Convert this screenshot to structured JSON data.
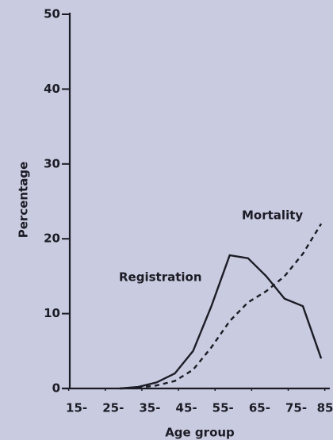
{
  "chart_data": {
    "type": "line",
    "xlabel": "Age group",
    "ylabel": "Percentage",
    "x": [
      29,
      34,
      39,
      44,
      49,
      54,
      59,
      64,
      69,
      74,
      79,
      84
    ],
    "series": [
      {
        "name": "Registration",
        "color": "#1c1c26",
        "dash": "solid",
        "values": [
          0,
          0.2,
          0.8,
          2,
          5,
          11,
          17.8,
          17.4,
          15,
          12,
          11,
          4
        ]
      },
      {
        "name": "Mortality",
        "color": "#1c1c26",
        "dash": "dashed",
        "values": [
          0,
          0.1,
          0.4,
          1,
          2.5,
          5.5,
          9,
          11.5,
          13,
          15,
          18,
          22
        ]
      }
    ],
    "xlim": [
      14,
      85.5
    ],
    "xticks": [
      {
        "value": 15,
        "label": "15-"
      },
      {
        "value": 25,
        "label": "25-"
      },
      {
        "value": 35,
        "label": "35-"
      },
      {
        "value": 45,
        "label": "45-"
      },
      {
        "value": 55,
        "label": "55-"
      },
      {
        "value": 65,
        "label": "65-"
      },
      {
        "value": 75,
        "label": "75-"
      },
      85
    ],
    "ylim": [
      0,
      50
    ],
    "yticks": [
      0,
      10,
      20,
      30,
      40,
      50
    ]
  }
}
